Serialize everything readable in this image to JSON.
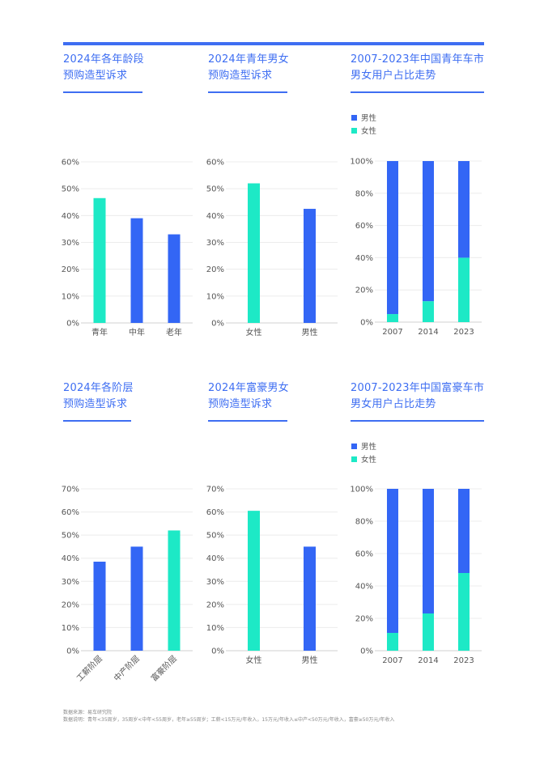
{
  "footer": {
    "source": "数据来源：易车研究院",
    "note": "数据说明：青年<35周岁，35周岁<中年<55周岁，老年≥55周岁；工薪<15万元/年收入，15万元/年收入≤中产<50万元/年收入，富豪≥50万元/年收入"
  },
  "colors": {
    "accent": "#3e6ef2",
    "blue": "#3366f5",
    "teal": "#1de9c6"
  },
  "chart_data": [
    {
      "type": "bar",
      "title_lines": [
        "2024年各年龄段",
        "预购造型诉求"
      ],
      "categories": [
        "青年",
        "中年",
        "老年"
      ],
      "values": [
        46.5,
        39,
        33
      ],
      "bar_colors": [
        "teal",
        "blue",
        "blue"
      ],
      "yticks": [
        "0%",
        "10%",
        "20%",
        "30%",
        "40%",
        "50%",
        "60%"
      ],
      "ylim": [
        0,
        60
      ],
      "grid": true
    },
    {
      "type": "bar",
      "title_lines": [
        "2024年青年男女",
        "预购造型诉求"
      ],
      "categories": [
        "女性",
        "男性"
      ],
      "values": [
        52,
        42.5
      ],
      "bar_colors": [
        "teal",
        "blue"
      ],
      "yticks": [
        "0%",
        "10%",
        "20%",
        "30%",
        "40%",
        "50%",
        "60%"
      ],
      "ylim": [
        0,
        60
      ],
      "grid": true
    },
    {
      "type": "bar",
      "stacked": true,
      "title_lines": [
        "2007-2023年中国青年车市",
        "男女用户占比走势"
      ],
      "categories": [
        "2007",
        "2014",
        "2023"
      ],
      "series": [
        {
          "name": "男性",
          "color": "blue",
          "values": [
            95,
            87,
            60
          ]
        },
        {
          "name": "女性",
          "color": "teal",
          "values": [
            5,
            13,
            40
          ]
        }
      ],
      "legend": "top-left",
      "yticks": [
        "0%",
        "20%",
        "40%",
        "60%",
        "80%",
        "100%"
      ],
      "ylim": [
        0,
        100
      ],
      "grid": true
    },
    {
      "type": "bar",
      "title_lines": [
        "2024年各阶层",
        "预购造型诉求"
      ],
      "categories": [
        "工薪阶层",
        "中产阶层",
        "富豪阶层"
      ],
      "values": [
        38.5,
        45,
        52
      ],
      "bar_colors": [
        "blue",
        "blue",
        "teal"
      ],
      "yticks": [
        "0%",
        "10%",
        "20%",
        "30%",
        "40%",
        "50%",
        "60%",
        "70%"
      ],
      "ylim": [
        0,
        70
      ],
      "rotate_x_labels": true,
      "grid": true
    },
    {
      "type": "bar",
      "title_lines": [
        "2024年富豪男女",
        "预购造型诉求"
      ],
      "categories": [
        "女性",
        "男性"
      ],
      "values": [
        60.5,
        45
      ],
      "bar_colors": [
        "teal",
        "blue"
      ],
      "yticks": [
        "0%",
        "10%",
        "20%",
        "30%",
        "40%",
        "50%",
        "60%",
        "70%"
      ],
      "ylim": [
        0,
        70
      ],
      "grid": true
    },
    {
      "type": "bar",
      "stacked": true,
      "title_lines": [
        "2007-2023年中国富豪车市",
        "男女用户占比走势"
      ],
      "categories": [
        "2007",
        "2014",
        "2023"
      ],
      "series": [
        {
          "name": "男性",
          "color": "blue",
          "values": [
            89,
            77,
            52
          ]
        },
        {
          "name": "女性",
          "color": "teal",
          "values": [
            11,
            23,
            48
          ]
        }
      ],
      "legend": "top-left",
      "yticks": [
        "0%",
        "20%",
        "40%",
        "60%",
        "80%",
        "100%"
      ],
      "ylim": [
        0,
        100
      ],
      "grid": true
    }
  ]
}
